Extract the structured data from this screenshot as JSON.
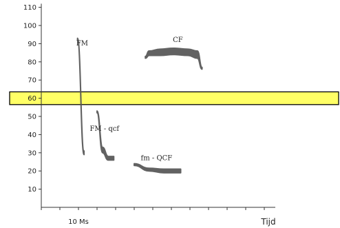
{
  "chart_data": {
    "type": "line",
    "y_ticks": [
      10,
      20,
      30,
      40,
      50,
      60,
      70,
      80,
      90,
      100,
      110
    ],
    "x_tick_labels": [
      {
        "label": "10 Ms",
        "tick_index": 2
      }
    ],
    "xlabel": "Tijd",
    "ylabel": "",
    "ylim": [
      0,
      112
    ],
    "grid": false,
    "highlight_band": {
      "y_range": [
        56.5,
        63.5
      ],
      "fill": "#ffff66",
      "stroke": "#000000"
    },
    "series": [
      {
        "name": "FM",
        "x": [
          1.95,
          2.3
        ],
        "y_top": [
          93,
          31
        ],
        "y_bottom": [
          92,
          29
        ],
        "label_at": [
          2.2,
          89
        ]
      },
      {
        "name": "FM - qcf",
        "x": [
          3.0,
          3.3,
          3.6,
          3.9
        ],
        "y_top": [
          53,
          33,
          28,
          28
        ],
        "y_bottom": [
          52,
          30,
          26,
          26
        ],
        "label_at": [
          3.4,
          42
        ]
      },
      {
        "name": "fm - QCF",
        "x": [
          5.0,
          5.8,
          6.6,
          7.5
        ],
        "y_top": [
          24,
          21.5,
          21,
          21
        ],
        "y_bottom": [
          23,
          20,
          19,
          19
        ],
        "label_at": [
          6.2,
          26
        ]
      },
      {
        "name": "CF",
        "x": [
          5.6,
          5.8,
          6.4,
          7.1,
          7.9,
          8.4,
          8.65
        ],
        "y_top": [
          83,
          86,
          87,
          87.5,
          87,
          86,
          77
        ],
        "y_bottom": [
          82,
          83.5,
          83.5,
          84,
          83.5,
          82,
          76
        ],
        "label_at": [
          7.35,
          91
        ]
      }
    ],
    "colors": {
      "axis": "#333333",
      "mark": "#555555",
      "text": "#222222"
    }
  }
}
